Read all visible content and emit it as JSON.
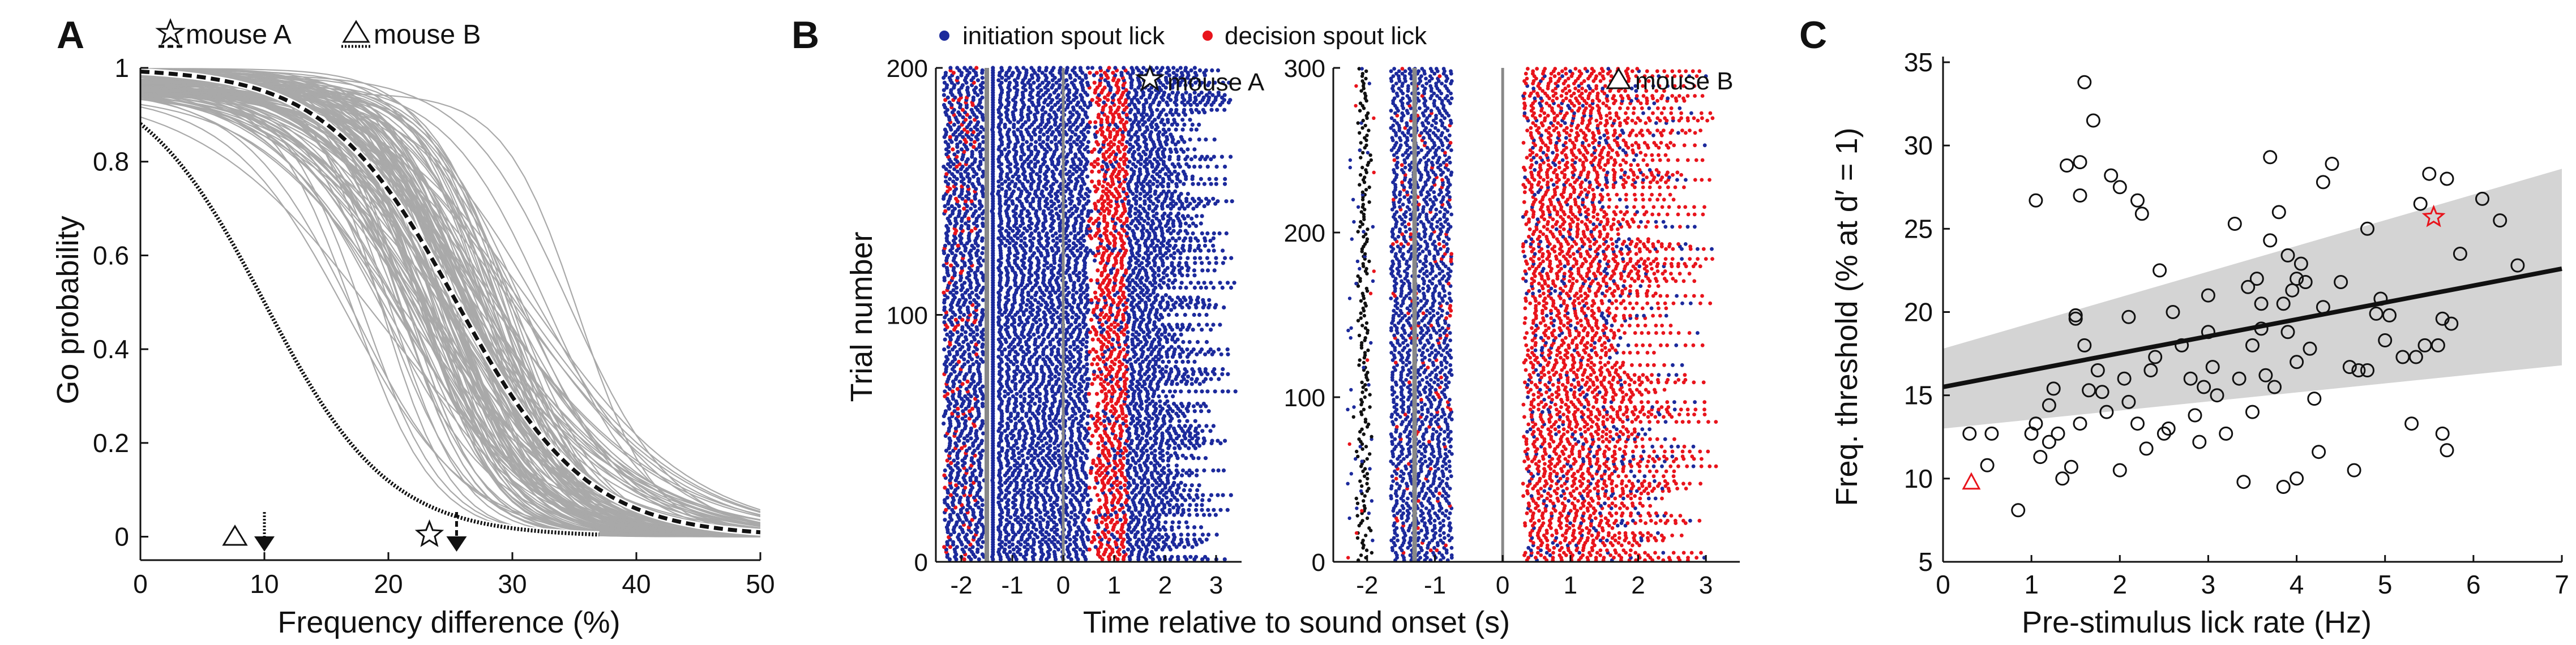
{
  "chart_data": [
    {
      "panel_label": "A",
      "type": "line",
      "title": "",
      "xlabel": "Frequency difference (%)",
      "ylabel": "Go probability",
      "xlim": [
        0,
        50
      ],
      "ylim": [
        -0.05,
        1.0
      ],
      "xticks": [
        "0",
        "10",
        "20",
        "30",
        "40",
        "50"
      ],
      "yticks": [
        "0",
        "0.2",
        "0.4",
        "0.6",
        "0.8",
        "1"
      ],
      "legend": [
        {
          "label": "mouse A",
          "marker": "star",
          "line": "dashed"
        },
        {
          "label": "mouse B",
          "marker": "triangle",
          "line": "dotted"
        }
      ],
      "grey_curves_note": "population psychometric fits (~150 mice), thresholds spread ~8-40%",
      "series": [
        {
          "name": "mouse A",
          "model": "logistic",
          "threshold": 25.5,
          "slope": 0.19,
          "x_range": [
            0,
            50
          ]
        },
        {
          "name": "mouse B",
          "model": "logistic",
          "threshold": 10,
          "slope": 0.2,
          "x_range": [
            0,
            37
          ]
        }
      ],
      "threshold_arrows": [
        {
          "name": "mouse B",
          "x": 10
        },
        {
          "name": "mouse A",
          "x": 25.5
        }
      ]
    },
    {
      "panel_label": "B",
      "type": "scatter",
      "xlabel": "Time relative to sound onset (s)",
      "ylabel": "Trial number",
      "legend": [
        "initiation spout lick",
        "decision spout lick"
      ],
      "colors": {
        "initiation": "#1c2a9c",
        "decision": "#e8141c",
        "onset": "#111111",
        "marker_line": "#888888"
      },
      "subplots": [
        {
          "name": "mouse A",
          "xlim": [
            -2.5,
            3.5
          ],
          "ylim": [
            0,
            200
          ],
          "xticks": [
            "-2",
            "-1",
            "0",
            "1",
            "2",
            "3"
          ],
          "yticks": [
            "0",
            "100",
            "200"
          ]
        },
        {
          "name": "mouse B",
          "xlim": [
            -2.5,
            3.5
          ],
          "ylim": [
            0,
            300
          ],
          "xticks": [
            "-2",
            "-1",
            "0",
            "1",
            "2",
            "3"
          ],
          "yticks": [
            "0",
            "100",
            "200",
            "300"
          ]
        }
      ]
    },
    {
      "panel_label": "C",
      "type": "scatter",
      "xlabel": "Pre-stimulus lick rate (Hz)",
      "ylabel": "Freq. threshold (% at d′ = 1)",
      "xlim": [
        0,
        7
      ],
      "ylim": [
        5,
        35
      ],
      "xticks": [
        "0",
        "1",
        "2",
        "3",
        "4",
        "5",
        "6",
        "7"
      ],
      "yticks": [
        "5",
        "10",
        "15",
        "20",
        "25",
        "30",
        "35"
      ],
      "fit": {
        "x": [
          0,
          7
        ],
        "y": [
          15.5,
          22.6
        ]
      },
      "ci_band": {
        "x": [
          0,
          7
        ],
        "lower": [
          13.0,
          16.8
        ],
        "upper": [
          17.8,
          28.6
        ]
      },
      "highlight": [
        {
          "name": "mouse A",
          "marker": "star",
          "x": 5.55,
          "y": 25.7,
          "color": "#e8141c"
        },
        {
          "name": "mouse B",
          "marker": "triangle",
          "x": 0.32,
          "y": 9.8,
          "color": "#e8141c"
        }
      ],
      "points": [
        [
          0.3,
          12.7
        ],
        [
          0.5,
          10.8
        ],
        [
          0.55,
          12.7
        ],
        [
          0.85,
          8.1
        ],
        [
          1.0,
          12.7
        ],
        [
          1.05,
          13.3
        ],
        [
          1.05,
          26.7
        ],
        [
          1.1,
          11.3
        ],
        [
          1.2,
          12.2
        ],
        [
          1.2,
          14.4
        ],
        [
          1.25,
          15.4
        ],
        [
          1.3,
          12.7
        ],
        [
          1.35,
          10.0
        ],
        [
          1.4,
          28.8
        ],
        [
          1.45,
          10.7
        ],
        [
          1.5,
          19.6
        ],
        [
          1.5,
          19.8
        ],
        [
          1.55,
          13.3
        ],
        [
          1.55,
          27.0
        ],
        [
          1.55,
          29.0
        ],
        [
          1.6,
          33.8
        ],
        [
          1.6,
          18.0
        ],
        [
          1.65,
          15.3
        ],
        [
          1.7,
          31.5
        ],
        [
          1.75,
          16.5
        ],
        [
          1.8,
          15.2
        ],
        [
          1.85,
          14.0
        ],
        [
          1.9,
          28.2
        ],
        [
          2.0,
          10.5
        ],
        [
          2.0,
          27.5
        ],
        [
          2.05,
          16.0
        ],
        [
          2.1,
          19.7
        ],
        [
          2.1,
          14.6
        ],
        [
          2.2,
          13.3
        ],
        [
          2.2,
          26.7
        ],
        [
          2.25,
          25.9
        ],
        [
          2.3,
          11.8
        ],
        [
          2.35,
          16.5
        ],
        [
          2.4,
          17.3
        ],
        [
          2.45,
          22.5
        ],
        [
          2.5,
          12.7
        ],
        [
          2.55,
          13.0
        ],
        [
          2.6,
          20.0
        ],
        [
          2.7,
          18.0
        ],
        [
          2.8,
          16.0
        ],
        [
          2.85,
          13.8
        ],
        [
          2.9,
          12.2
        ],
        [
          2.95,
          15.5
        ],
        [
          3.0,
          18.8
        ],
        [
          3.0,
          21.0
        ],
        [
          3.05,
          16.7
        ],
        [
          3.1,
          15.0
        ],
        [
          3.2,
          12.7
        ],
        [
          3.3,
          25.3
        ],
        [
          3.35,
          16.0
        ],
        [
          3.4,
          9.8
        ],
        [
          3.45,
          21.5
        ],
        [
          3.5,
          18.0
        ],
        [
          3.5,
          14.0
        ],
        [
          3.55,
          22.0
        ],
        [
          3.6,
          19.0
        ],
        [
          3.6,
          20.5
        ],
        [
          3.65,
          16.2
        ],
        [
          3.7,
          29.3
        ],
        [
          3.7,
          24.3
        ],
        [
          3.75,
          15.5
        ],
        [
          3.8,
          26.0
        ],
        [
          3.85,
          9.5
        ],
        [
          3.85,
          20.5
        ],
        [
          3.9,
          18.8
        ],
        [
          3.9,
          23.4
        ],
        [
          3.95,
          21.3
        ],
        [
          4.0,
          10.0
        ],
        [
          4.0,
          17.0
        ],
        [
          4.0,
          22.0
        ],
        [
          4.05,
          22.9
        ],
        [
          4.1,
          21.8
        ],
        [
          4.15,
          17.8
        ],
        [
          4.2,
          14.8
        ],
        [
          4.25,
          11.6
        ],
        [
          4.3,
          27.8
        ],
        [
          4.3,
          20.3
        ],
        [
          4.4,
          28.9
        ],
        [
          4.5,
          21.8
        ],
        [
          4.6,
          16.7
        ],
        [
          4.65,
          10.5
        ],
        [
          4.7,
          16.5
        ],
        [
          4.8,
          16.5
        ],
        [
          4.8,
          25.0
        ],
        [
          4.9,
          19.9
        ],
        [
          4.95,
          20.8
        ],
        [
          5.0,
          18.3
        ],
        [
          5.05,
          19.8
        ],
        [
          5.2,
          17.3
        ],
        [
          5.3,
          13.3
        ],
        [
          5.35,
          17.3
        ],
        [
          5.4,
          26.5
        ],
        [
          5.45,
          18.0
        ],
        [
          5.5,
          28.3
        ],
        [
          5.6,
          18.0
        ],
        [
          5.65,
          19.6
        ],
        [
          5.65,
          12.7
        ],
        [
          5.7,
          11.7
        ],
        [
          5.7,
          28.0
        ],
        [
          5.75,
          19.3
        ],
        [
          5.85,
          23.5
        ],
        [
          6.1,
          26.8
        ],
        [
          6.3,
          25.5
        ],
        [
          6.5,
          22.8
        ]
      ]
    }
  ]
}
